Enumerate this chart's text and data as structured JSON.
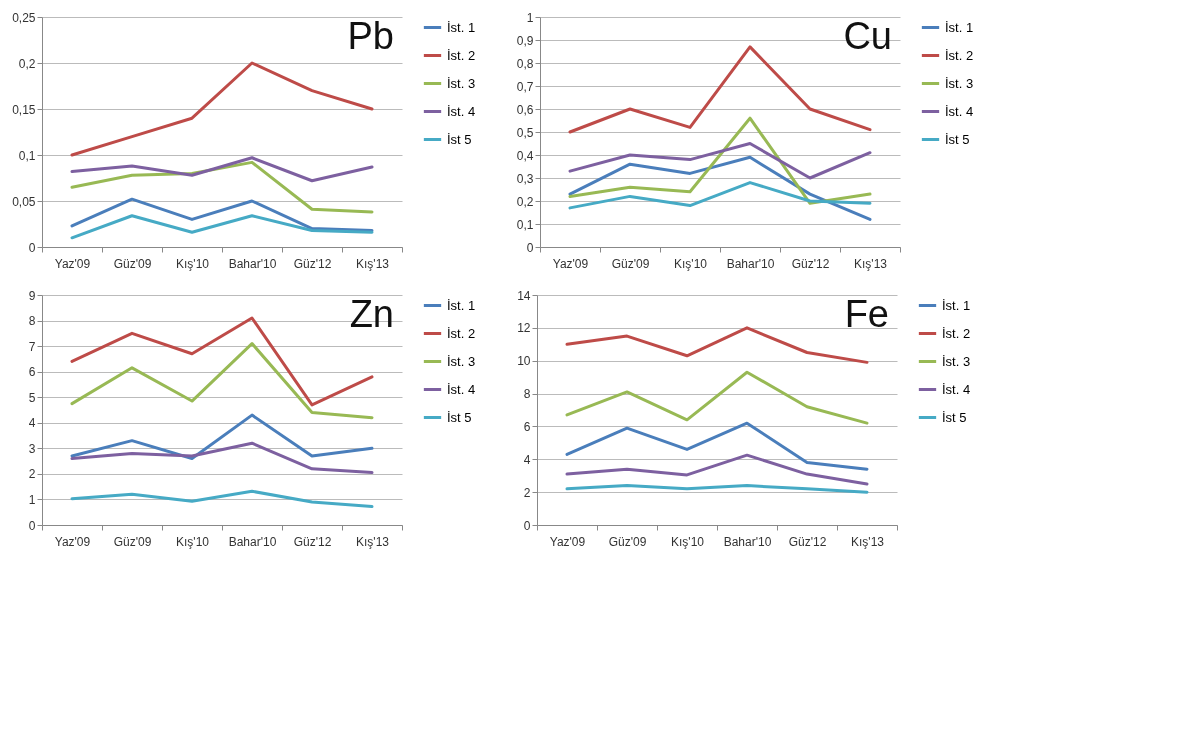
{
  "chart_data": [
    {
      "type": "line",
      "title": "Pb",
      "categories": [
        "Yaz'09",
        "Güz'09",
        "Kış'10",
        "Bahar'10",
        "Güz'12",
        "Kış'13"
      ],
      "ylim": [
        0,
        0.25
      ],
      "yticks": [
        0,
        {
          "value": 0.05,
          "label": "0,05"
        },
        {
          "value": 0.1,
          "label": "0,1"
        },
        {
          "value": 0.15,
          "label": "0,15"
        },
        {
          "value": 0.2,
          "label": "0,2"
        },
        {
          "value": 0.25,
          "label": "0,25"
        }
      ],
      "grid": "y",
      "legend": "right",
      "series": [
        {
          "name": "İst. 1",
          "color": "#4a7ebb",
          "values": [
            0.023,
            0.052,
            0.03,
            0.05,
            0.02,
            0.018
          ]
        },
        {
          "name": "İst. 2",
          "color": "#be4b48",
          "values": [
            0.1,
            0.12,
            0.14,
            0.2,
            0.17,
            0.15
          ]
        },
        {
          "name": "İst. 3",
          "color": "#98b954",
          "values": [
            0.065,
            0.078,
            0.08,
            0.092,
            0.041,
            0.038
          ]
        },
        {
          "name": "İst. 4",
          "color": "#7d60a0",
          "values": [
            0.082,
            0.088,
            0.078,
            0.097,
            0.072,
            0.087
          ]
        },
        {
          "name": "İst 5",
          "color": "#46aac5",
          "values": [
            0.01,
            0.034,
            0.016,
            0.034,
            0.018,
            0.016
          ]
        }
      ]
    },
    {
      "type": "line",
      "title": "Cu",
      "categories": [
        "Yaz'09",
        "Güz'09",
        "Kış'10",
        "Bahar'10",
        "Güz'12",
        "Kış'13"
      ],
      "ylim": [
        0,
        1
      ],
      "yticks": [
        0,
        {
          "value": 0.1,
          "label": "0,1"
        },
        {
          "value": 0.2,
          "label": "0,2"
        },
        {
          "value": 0.3,
          "label": "0,3"
        },
        {
          "value": 0.4,
          "label": "0,4"
        },
        {
          "value": 0.5,
          "label": "0,5"
        },
        {
          "value": 0.6,
          "label": "0,6"
        },
        {
          "value": 0.7,
          "label": "0,7"
        },
        {
          "value": 0.8,
          "label": "0,8"
        },
        {
          "value": 0.9,
          "label": "0,9"
        },
        1
      ],
      "grid": "y",
      "legend": "right",
      "series": [
        {
          "name": "İst. 1",
          "color": "#4a7ebb",
          "values": [
            0.23,
            0.36,
            0.32,
            0.39,
            0.23,
            0.12
          ]
        },
        {
          "name": "İst. 2",
          "color": "#be4b48",
          "values": [
            0.5,
            0.6,
            0.52,
            0.87,
            0.6,
            0.51
          ]
        },
        {
          "name": "İst. 3",
          "color": "#98b954",
          "values": [
            0.22,
            0.26,
            0.24,
            0.56,
            0.19,
            0.23
          ]
        },
        {
          "name": "İst. 4",
          "color": "#7d60a0",
          "values": [
            0.33,
            0.4,
            0.38,
            0.45,
            0.3,
            0.41
          ]
        },
        {
          "name": "İst 5",
          "color": "#46aac5",
          "values": [
            0.17,
            0.22,
            0.18,
            0.28,
            0.2,
            0.19
          ]
        }
      ]
    },
    {
      "type": "line",
      "title": "Zn",
      "categories": [
        "Yaz'09",
        "Güz'09",
        "Kış'10",
        "Bahar'10",
        "Güz'12",
        "Kış'13"
      ],
      "ylim": [
        0,
        9
      ],
      "yticks": [
        0,
        1,
        2,
        3,
        4,
        5,
        6,
        7,
        8,
        9
      ],
      "grid": "y",
      "legend": "right",
      "series": [
        {
          "name": "İst. 1",
          "color": "#4a7ebb",
          "values": [
            2.7,
            3.3,
            2.6,
            4.3,
            2.7,
            3.0
          ]
        },
        {
          "name": "İst. 2",
          "color": "#be4b48",
          "values": [
            6.4,
            7.5,
            6.7,
            8.1,
            4.7,
            5.8
          ]
        },
        {
          "name": "İst. 3",
          "color": "#98b954",
          "values": [
            4.75,
            6.15,
            4.85,
            7.1,
            4.4,
            4.2
          ]
        },
        {
          "name": "İst. 4",
          "color": "#7d60a0",
          "values": [
            2.6,
            2.8,
            2.7,
            3.2,
            2.2,
            2.05
          ]
        },
        {
          "name": "İst 5",
          "color": "#46aac5",
          "values": [
            1.03,
            1.2,
            0.93,
            1.32,
            0.9,
            0.72
          ]
        }
      ]
    },
    {
      "type": "line",
      "title": "Fe",
      "categories": [
        "Yaz'09",
        "Güz'09",
        "Kış'10",
        "Bahar'10",
        "Güz'12",
        "Kış'13"
      ],
      "ylim": [
        0,
        14
      ],
      "yticks": [
        0,
        2,
        4,
        6,
        8,
        10,
        12,
        14
      ],
      "grid": "y",
      "legend": "right",
      "series": [
        {
          "name": "İst. 1",
          "color": "#4a7ebb",
          "values": [
            4.3,
            5.9,
            4.6,
            6.2,
            3.8,
            3.4
          ]
        },
        {
          "name": "İst. 2",
          "color": "#be4b48",
          "values": [
            11.0,
            11.5,
            10.3,
            12.0,
            10.5,
            9.9
          ]
        },
        {
          "name": "İst. 3",
          "color": "#98b954",
          "values": [
            6.7,
            8.1,
            6.4,
            9.3,
            7.2,
            6.2
          ]
        },
        {
          "name": "İst. 4",
          "color": "#7d60a0",
          "values": [
            3.1,
            3.4,
            3.05,
            4.25,
            3.1,
            2.5
          ]
        },
        {
          "name": "İst 5",
          "color": "#46aac5",
          "values": [
            2.2,
            2.4,
            2.2,
            2.4,
            2.2,
            2.0
          ]
        }
      ]
    }
  ]
}
